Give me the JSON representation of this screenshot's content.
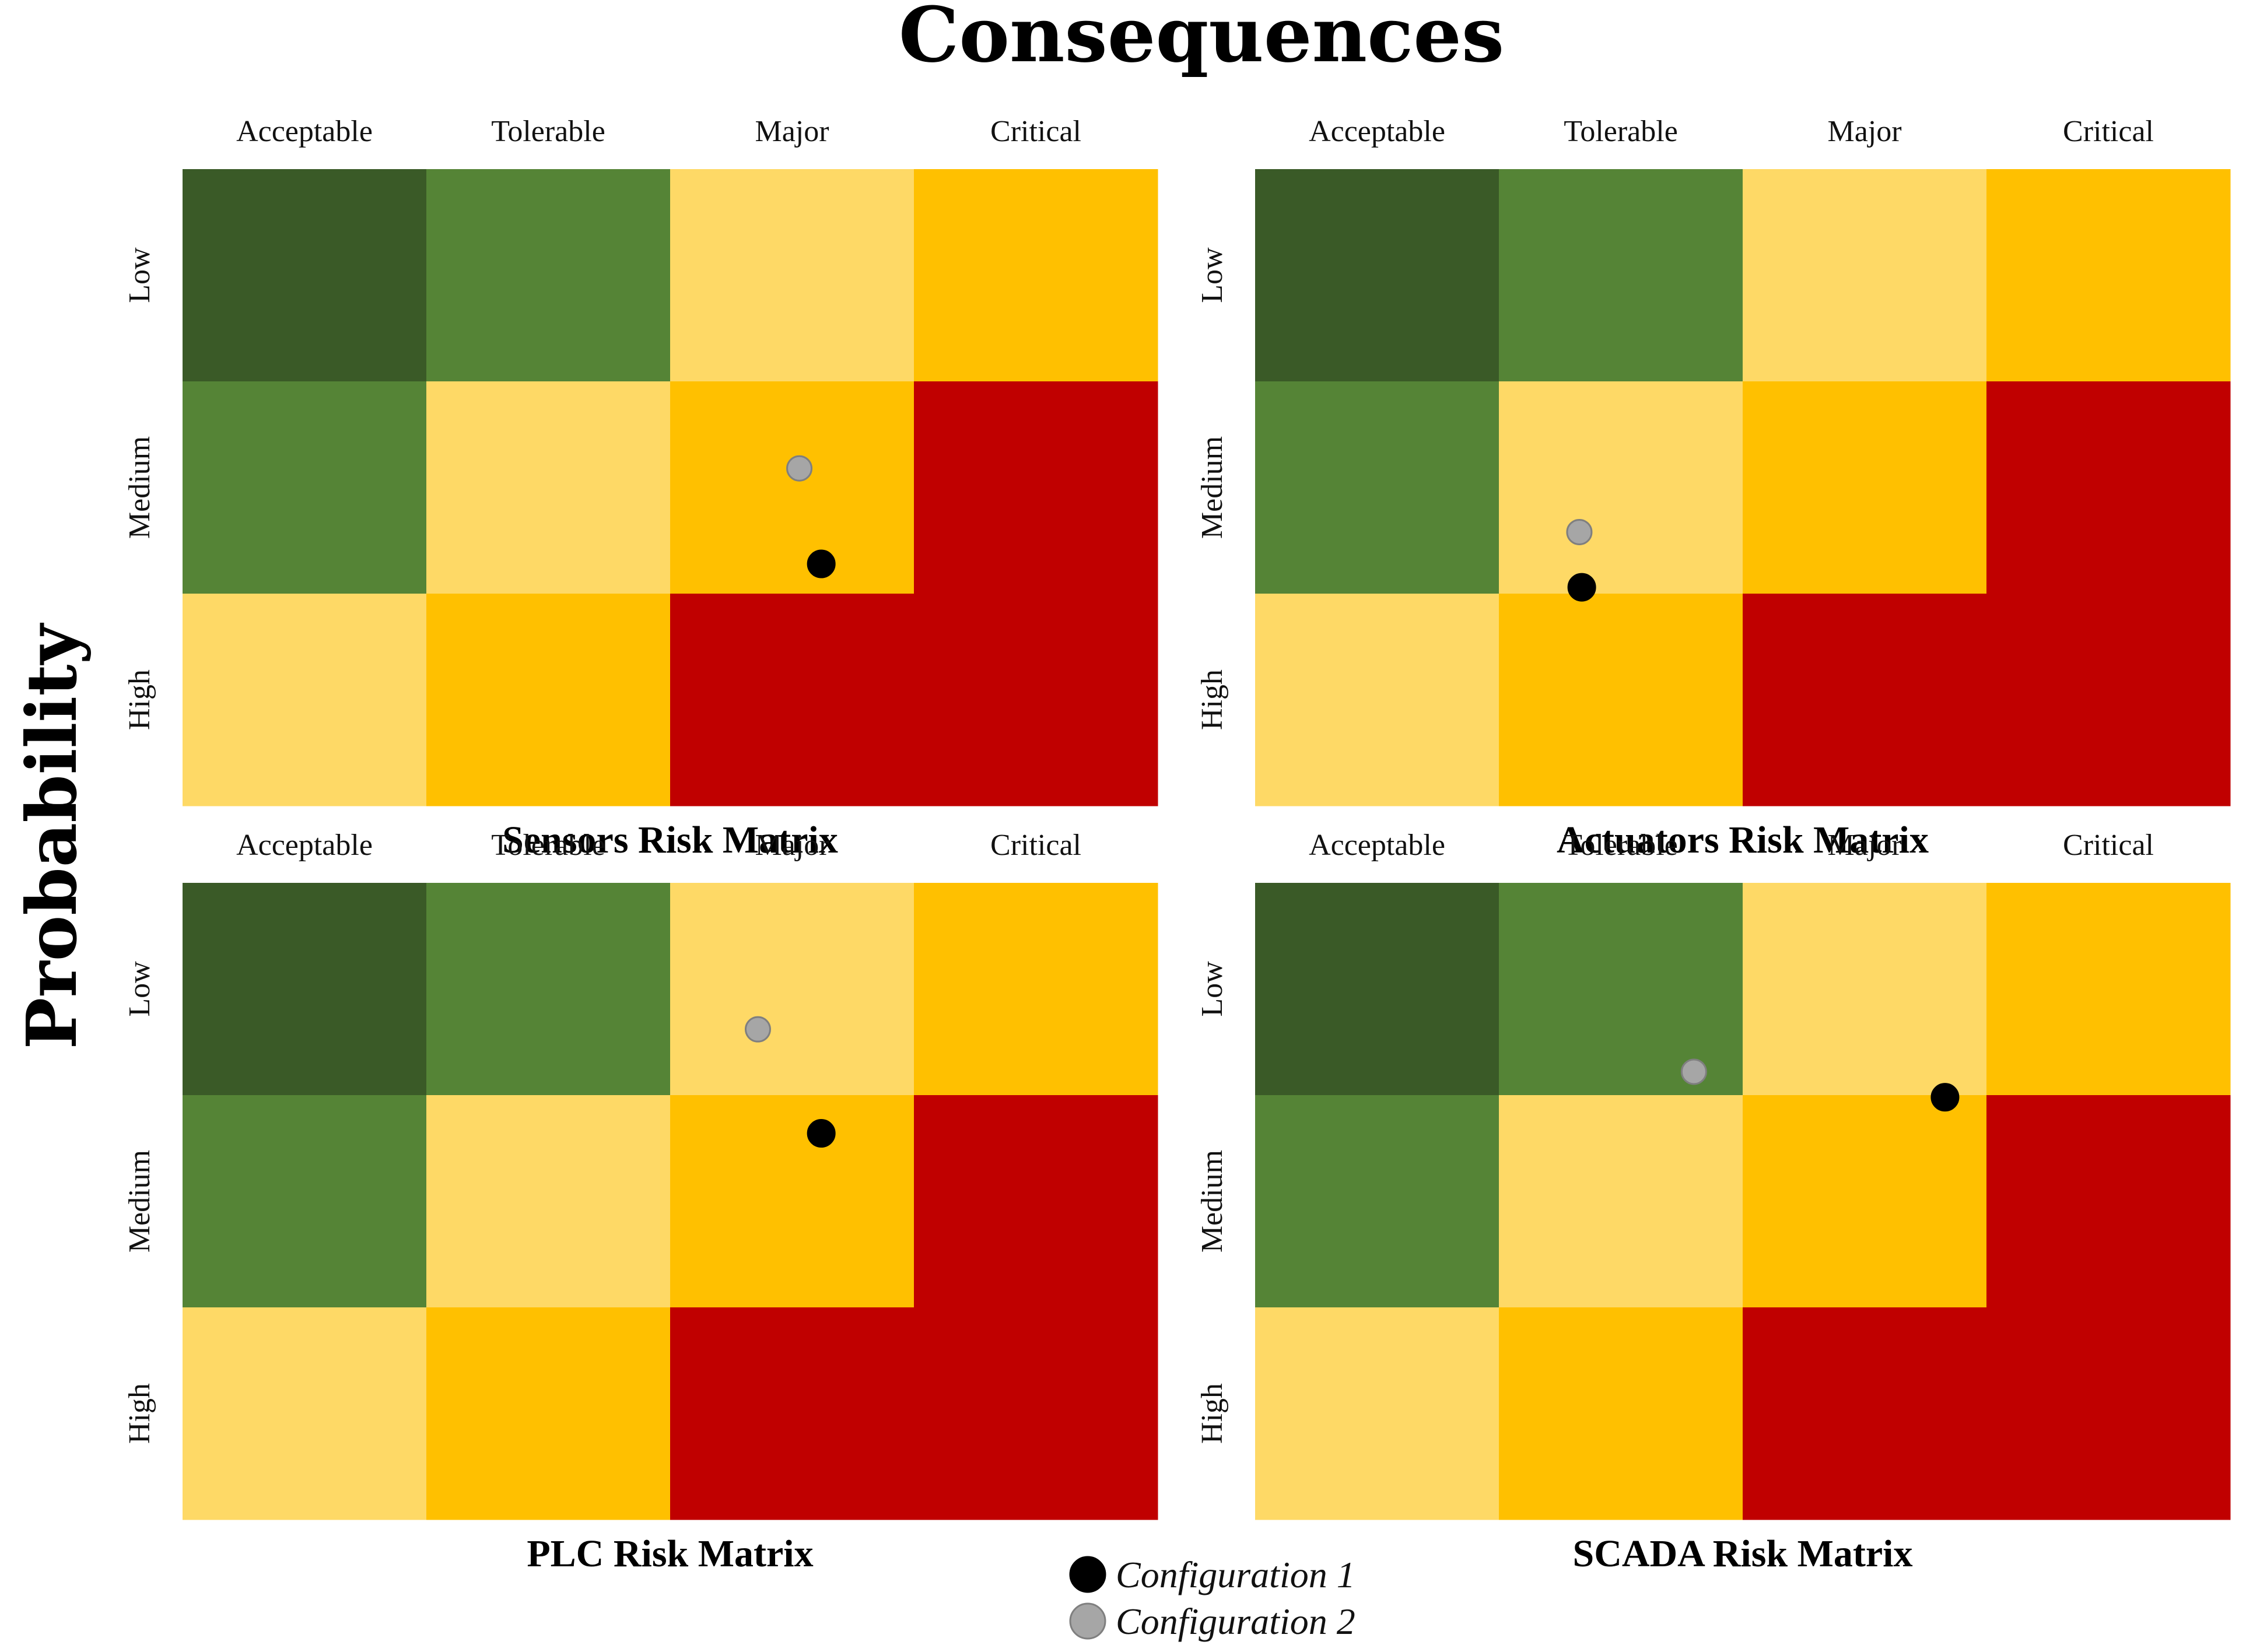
{
  "chart_data": {
    "type": "heatmap",
    "x_title": "Consequences",
    "y_title": "Probability",
    "consequence_levels": [
      "Acceptable",
      "Tolerable",
      "Major",
      "Critical"
    ],
    "probability_levels": [
      "Low",
      "Medium",
      "High"
    ],
    "cell_colors": [
      [
        "#3a5a27",
        "#558436",
        "#fed966",
        "#ffc000"
      ],
      [
        "#558436",
        "#fed966",
        "#ffc000",
        "#c00000"
      ],
      [
        "#fed966",
        "#ffc000",
        "#c00000",
        "#c00000"
      ]
    ],
    "matrices": [
      {
        "title": "Sensors Risk Matrix",
        "points": [
          {
            "series": "Configuration 1",
            "consequence": 2.62,
            "probability": 1.86
          },
          {
            "series": "Configuration 2",
            "consequence": 2.53,
            "probability": 1.41
          }
        ]
      },
      {
        "title": "Actuators Risk Matrix",
        "points": [
          {
            "series": "Configuration 1",
            "consequence": 1.34,
            "probability": 1.97
          },
          {
            "series": "Configuration 2",
            "consequence": 1.33,
            "probability": 1.71
          }
        ]
      },
      {
        "title": "PLC Risk Matrix",
        "points": [
          {
            "series": "Configuration 1",
            "consequence": 2.62,
            "probability": 1.18
          },
          {
            "series": "Configuration 2",
            "consequence": 2.36,
            "probability": 0.69
          }
        ]
      },
      {
        "title": "SCADA Risk Matrix",
        "points": [
          {
            "series": "Configuration 1",
            "consequence": 2.83,
            "probability": 1.01
          },
          {
            "series": "Configuration 2",
            "consequence": 1.8,
            "probability": 0.89
          }
        ]
      }
    ],
    "legend": [
      {
        "name": "Configuration 1",
        "color": "#000000"
      },
      {
        "name": "Configuration 2",
        "color": "#a6a6a6"
      }
    ]
  }
}
